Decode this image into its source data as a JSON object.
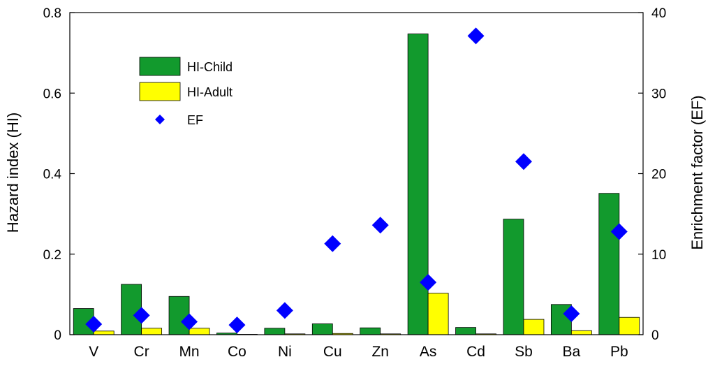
{
  "chart_data": {
    "type": "bar",
    "categories": [
      "V",
      "Cr",
      "Mn",
      "Co",
      "Ni",
      "Cu",
      "Zn",
      "As",
      "Cd",
      "Sb",
      "Ba",
      "Pb"
    ],
    "series": [
      {
        "name": "HI-Child",
        "type": "bar",
        "axis": "left",
        "color": "#129a2d",
        "values": [
          0.065,
          0.125,
          0.095,
          0.004,
          0.016,
          0.027,
          0.017,
          0.747,
          0.018,
          0.287,
          0.075,
          0.351
        ]
      },
      {
        "name": "HI-Adult",
        "type": "bar",
        "axis": "left",
        "color": "#ffff00",
        "values": [
          0.009,
          0.016,
          0.016,
          0.001,
          0.002,
          0.003,
          0.002,
          0.103,
          0.002,
          0.038,
          0.01,
          0.043
        ]
      },
      {
        "name": "EF",
        "type": "scatter",
        "axis": "right",
        "color": "#0000ff",
        "marker": "diamond",
        "values": [
          1.3,
          2.4,
          1.6,
          1.2,
          3.0,
          11.3,
          13.6,
          6.5,
          37.1,
          21.5,
          2.6,
          12.8
        ]
      }
    ],
    "ylabel": "Hazard index (HI)",
    "y2label": "Enrichment factor (EF)",
    "ylim": [
      0,
      0.8
    ],
    "y2lim": [
      0,
      40
    ],
    "yticks": [
      "0",
      "0.2",
      "0.4",
      "0.6",
      "0.8"
    ],
    "y2ticks": [
      "0",
      "10",
      "20",
      "30",
      "40"
    ],
    "legend": {
      "position": "top-left",
      "entries": [
        "HI-Child",
        "HI-Adult",
        "EF"
      ]
    },
    "grid": false
  }
}
